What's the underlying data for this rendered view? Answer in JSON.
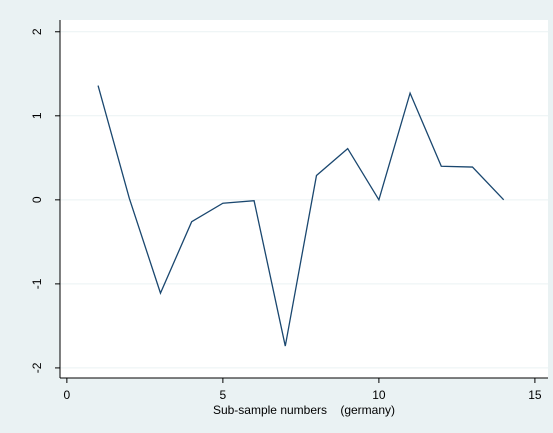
{
  "chart_data": {
    "type": "line",
    "x_label": "Sub-sample numbers    (germany)",
    "x": [
      1,
      2,
      3,
      4,
      5,
      6,
      7,
      8,
      9,
      10,
      11,
      12,
      13,
      14
    ],
    "series": [
      {
        "color": "#1a476f",
        "values": [
          1.36,
          0.02,
          -1.11,
          -0.26,
          -0.04,
          -0.01,
          -1.74,
          0.29,
          0.61,
          0.0,
          1.27,
          0.4,
          0.39,
          0.0
        ]
      }
    ],
    "xlim": [
      -0.22,
      15.42
    ],
    "xticks": [
      0,
      5,
      10,
      15
    ],
    "ylim": [
      -2.12,
      2.14
    ],
    "yticks": [
      -2,
      -1,
      0,
      1,
      2
    ],
    "grid": true
  }
}
